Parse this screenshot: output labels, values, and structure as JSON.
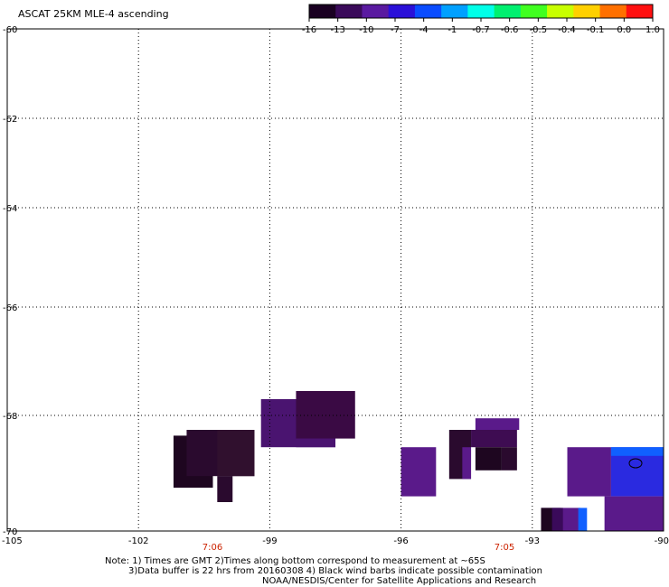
{
  "title": "ASCAT 25KM MLE-4 ascending",
  "colorbar": {
    "labels": [
      "-16",
      "-13",
      "-10",
      "-7",
      "-4",
      "-1",
      "-0.7",
      "-0.6",
      "-0.5",
      "-0.4",
      "-0.1",
      "0.0",
      "1.0"
    ],
    "colors": [
      "#1a0022",
      "#3a0a5a",
      "#5a1aa0",
      "#2a10d8",
      "#0a4cff",
      "#00a0ff",
      "#00ffe8",
      "#00f070",
      "#40ff20",
      "#c8ff00",
      "#ffd000",
      "#ff7000",
      "#ff1010"
    ]
  },
  "axes": {
    "lon_ticks": [
      "-105",
      "-102",
      "-99",
      "-96",
      "-93",
      "-90"
    ],
    "lat_ticks": [
      "-60",
      "-62",
      "-64",
      "-66",
      "-68",
      "-70"
    ]
  },
  "time_labels": [
    "7:06",
    "7:05"
  ],
  "time_label_color": "#cc2200",
  "notes": {
    "line1": "Note: 1) Times are GMT 2)Times along bottom correspond to measurement at ~65S",
    "line2": "3)Data buffer is 22 hrs from 20160308 4) Black wind barbs indicate possible contamination",
    "line3": "NOAA/NESDIS/Center for Satellite Applications and Research"
  },
  "map_data": {
    "lon_range": [
      -105,
      -90
    ],
    "lat_range": [
      -70,
      -60
    ],
    "swath_colors": {
      "dark": "#2a0a2e",
      "darker": "#1e0620",
      "purple": "#5a1a8a",
      "blue": "#2a2ae0",
      "bright_blue": "#1060ff"
    }
  }
}
